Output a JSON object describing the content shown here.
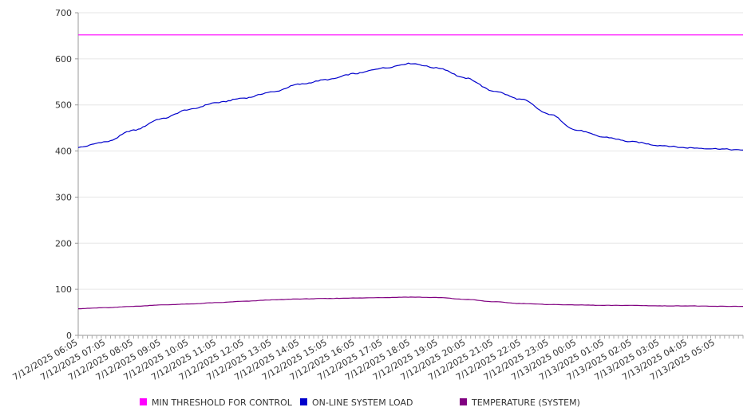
{
  "chart_data": {
    "type": "line",
    "title": "",
    "xlabel": "",
    "ylabel": "",
    "ylim": [
      0,
      700
    ],
    "yticks": [
      0,
      100,
      200,
      300,
      400,
      500,
      600,
      700
    ],
    "grid": true,
    "legend_position": "bottom",
    "x_tick_labels": [
      "7/12/2025 06:05",
      "7/12/2025 07:05",
      "7/12/2025 08:05",
      "7/12/2025 09:05",
      "7/12/2025 10:05",
      "7/12/2025 11:05",
      "7/12/2025 12:05",
      "7/12/2025 13:05",
      "7/12/2025 14:05",
      "7/12/2025 15:05",
      "7/12/2025 16:05",
      "7/12/2025 17:05",
      "7/12/2025 18:05",
      "7/12/2025 19:05",
      "7/12/2025 20:05",
      "7/12/2025 21:05",
      "7/12/2025 22:05",
      "7/12/2025 23:05",
      "7/13/2025 00:05",
      "7/13/2025 01:05",
      "7/13/2025 02:05",
      "7/13/2025 03:05",
      "7/13/2025 04:05",
      "7/13/2025 05:05"
    ],
    "x_range": [
      "7/12/2025 06:05",
      "7/13/2025 06:05"
    ],
    "series": [
      {
        "name": "MIN THRESHOLD FOR CONTROL",
        "color": "#ff00ff",
        "x": [
          "7/12/2025 06:05",
          "7/13/2025 06:05"
        ],
        "values": [
          652,
          652
        ]
      },
      {
        "name": "ON-LINE SYSTEM LOAD",
        "color": "#0000cc",
        "x": [
          "7/12/2025 06:05",
          "7/12/2025 07:05",
          "7/12/2025 08:05",
          "7/12/2025 09:05",
          "7/12/2025 10:05",
          "7/12/2025 11:05",
          "7/12/2025 12:05",
          "7/12/2025 13:05",
          "7/12/2025 14:05",
          "7/12/2025 15:05",
          "7/12/2025 16:05",
          "7/12/2025 17:05",
          "7/12/2025 18:05",
          "7/12/2025 19:05",
          "7/12/2025 20:05",
          "7/12/2025 21:05",
          "7/12/2025 22:05",
          "7/12/2025 23:05",
          "7/13/2025 00:05",
          "7/13/2025 01:05",
          "7/13/2025 02:05",
          "7/13/2025 03:05",
          "7/13/2025 04:05",
          "7/13/2025 05:05",
          "7/13/2025 06:05"
        ],
        "values": [
          408,
          420,
          445,
          470,
          490,
          505,
          515,
          528,
          545,
          555,
          568,
          580,
          590,
          580,
          558,
          530,
          512,
          480,
          445,
          430,
          420,
          412,
          407,
          405,
          402
        ]
      },
      {
        "name": "TEMPERATURE (SYSTEM)",
        "color": "#800080",
        "x": [
          "7/12/2025 06:05",
          "7/12/2025 07:05",
          "7/12/2025 08:05",
          "7/12/2025 09:05",
          "7/12/2025 10:05",
          "7/12/2025 11:05",
          "7/12/2025 12:05",
          "7/12/2025 13:05",
          "7/12/2025 14:05",
          "7/12/2025 15:05",
          "7/12/2025 16:05",
          "7/12/2025 17:05",
          "7/12/2025 18:05",
          "7/12/2025 19:05",
          "7/12/2025 20:05",
          "7/12/2025 21:05",
          "7/12/2025 22:05",
          "7/12/2025 23:05",
          "7/13/2025 00:05",
          "7/13/2025 01:05",
          "7/13/2025 02:05",
          "7/13/2025 03:05",
          "7/13/2025 04:05",
          "7/13/2025 05:05",
          "7/13/2025 06:05"
        ],
        "values": [
          58,
          60,
          63,
          66,
          68,
          71,
          74,
          77,
          79,
          80,
          81,
          82,
          83,
          82,
          78,
          73,
          69,
          67,
          66,
          65,
          65,
          64,
          64,
          63,
          63
        ]
      }
    ]
  }
}
